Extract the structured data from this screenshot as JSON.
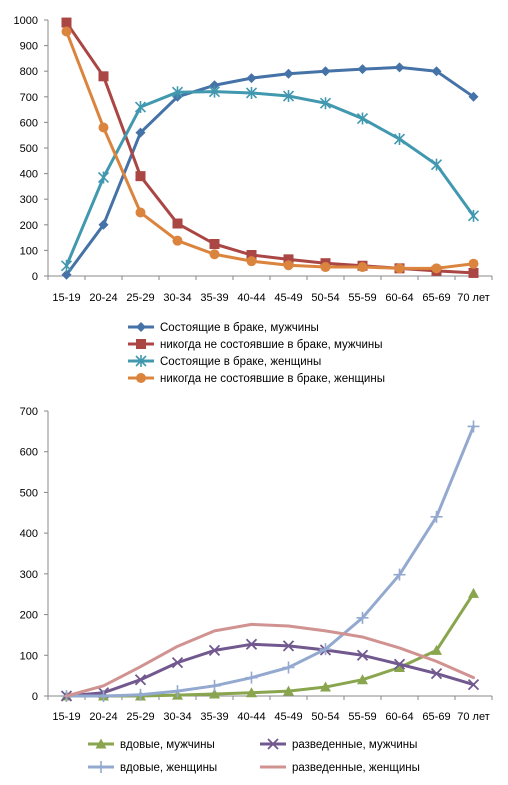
{
  "chart_data": [
    {
      "type": "line",
      "categories": [
        "15-19",
        "20-24",
        "25-29",
        "30-34",
        "35-39",
        "40-44",
        "45-49",
        "50-54",
        "55-59",
        "60-64",
        "65-69",
        "70 лет"
      ],
      "ylim": [
        0,
        1000
      ],
      "yticks": [
        0,
        100,
        200,
        300,
        400,
        500,
        600,
        700,
        800,
        900,
        1000
      ],
      "grid": false,
      "legend_position": "bottom",
      "series": [
        {
          "name": "Состоящие в браке, мужчины",
          "color": "#4572a7",
          "marker": "diamond",
          "values": [
            5,
            200,
            560,
            700,
            745,
            773,
            790,
            800,
            808,
            815,
            800,
            700
          ]
        },
        {
          "name": "никогда не состоявшие в браке, мужчины",
          "color": "#aa4643",
          "marker": "square",
          "values": [
            990,
            780,
            390,
            205,
            125,
            82,
            65,
            50,
            40,
            30,
            20,
            12
          ]
        },
        {
          "name": "Состоящие в браке, женщины",
          "color": "#4198af",
          "marker": "star",
          "values": [
            40,
            385,
            660,
            718,
            720,
            715,
            703,
            675,
            615,
            535,
            435,
            235
          ]
        },
        {
          "name": "никогда не состоявшие в браке, женщины",
          "color": "#db843d",
          "marker": "circle",
          "values": [
            955,
            580,
            248,
            138,
            85,
            58,
            42,
            35,
            35,
            30,
            30,
            48
          ]
        }
      ]
    },
    {
      "type": "line",
      "categories": [
        "15-19",
        "20-24",
        "25-29",
        "30-34",
        "35-39",
        "40-44",
        "45-49",
        "50-54",
        "55-59",
        "60-64",
        "65-69",
        "70 лет"
      ],
      "ylim": [
        0,
        700
      ],
      "yticks": [
        0,
        100,
        200,
        300,
        400,
        500,
        600,
        700
      ],
      "grid": false,
      "legend_position": "bottom",
      "series": [
        {
          "name": "вдовые, мужчины",
          "color": "#89a54e",
          "marker": "triangle",
          "values": [
            0,
            0,
            0,
            2,
            5,
            8,
            12,
            22,
            40,
            70,
            112,
            252
          ]
        },
        {
          "name": "разведенные,  мужчины",
          "color": "#71588f",
          "marker": "x",
          "values": [
            0,
            8,
            40,
            82,
            112,
            127,
            123,
            113,
            100,
            78,
            55,
            28
          ]
        },
        {
          "name": "вдовые, женщины",
          "color": "#93a9cf",
          "marker": "plus",
          "values": [
            0,
            0,
            3,
            12,
            25,
            45,
            70,
            115,
            192,
            298,
            440,
            662
          ]
        },
        {
          "name": "разведенные, женщины",
          "color": "#d19392",
          "marker": "none",
          "values": [
            0,
            25,
            72,
            122,
            160,
            176,
            172,
            160,
            145,
            118,
            85,
            45
          ]
        }
      ]
    }
  ]
}
